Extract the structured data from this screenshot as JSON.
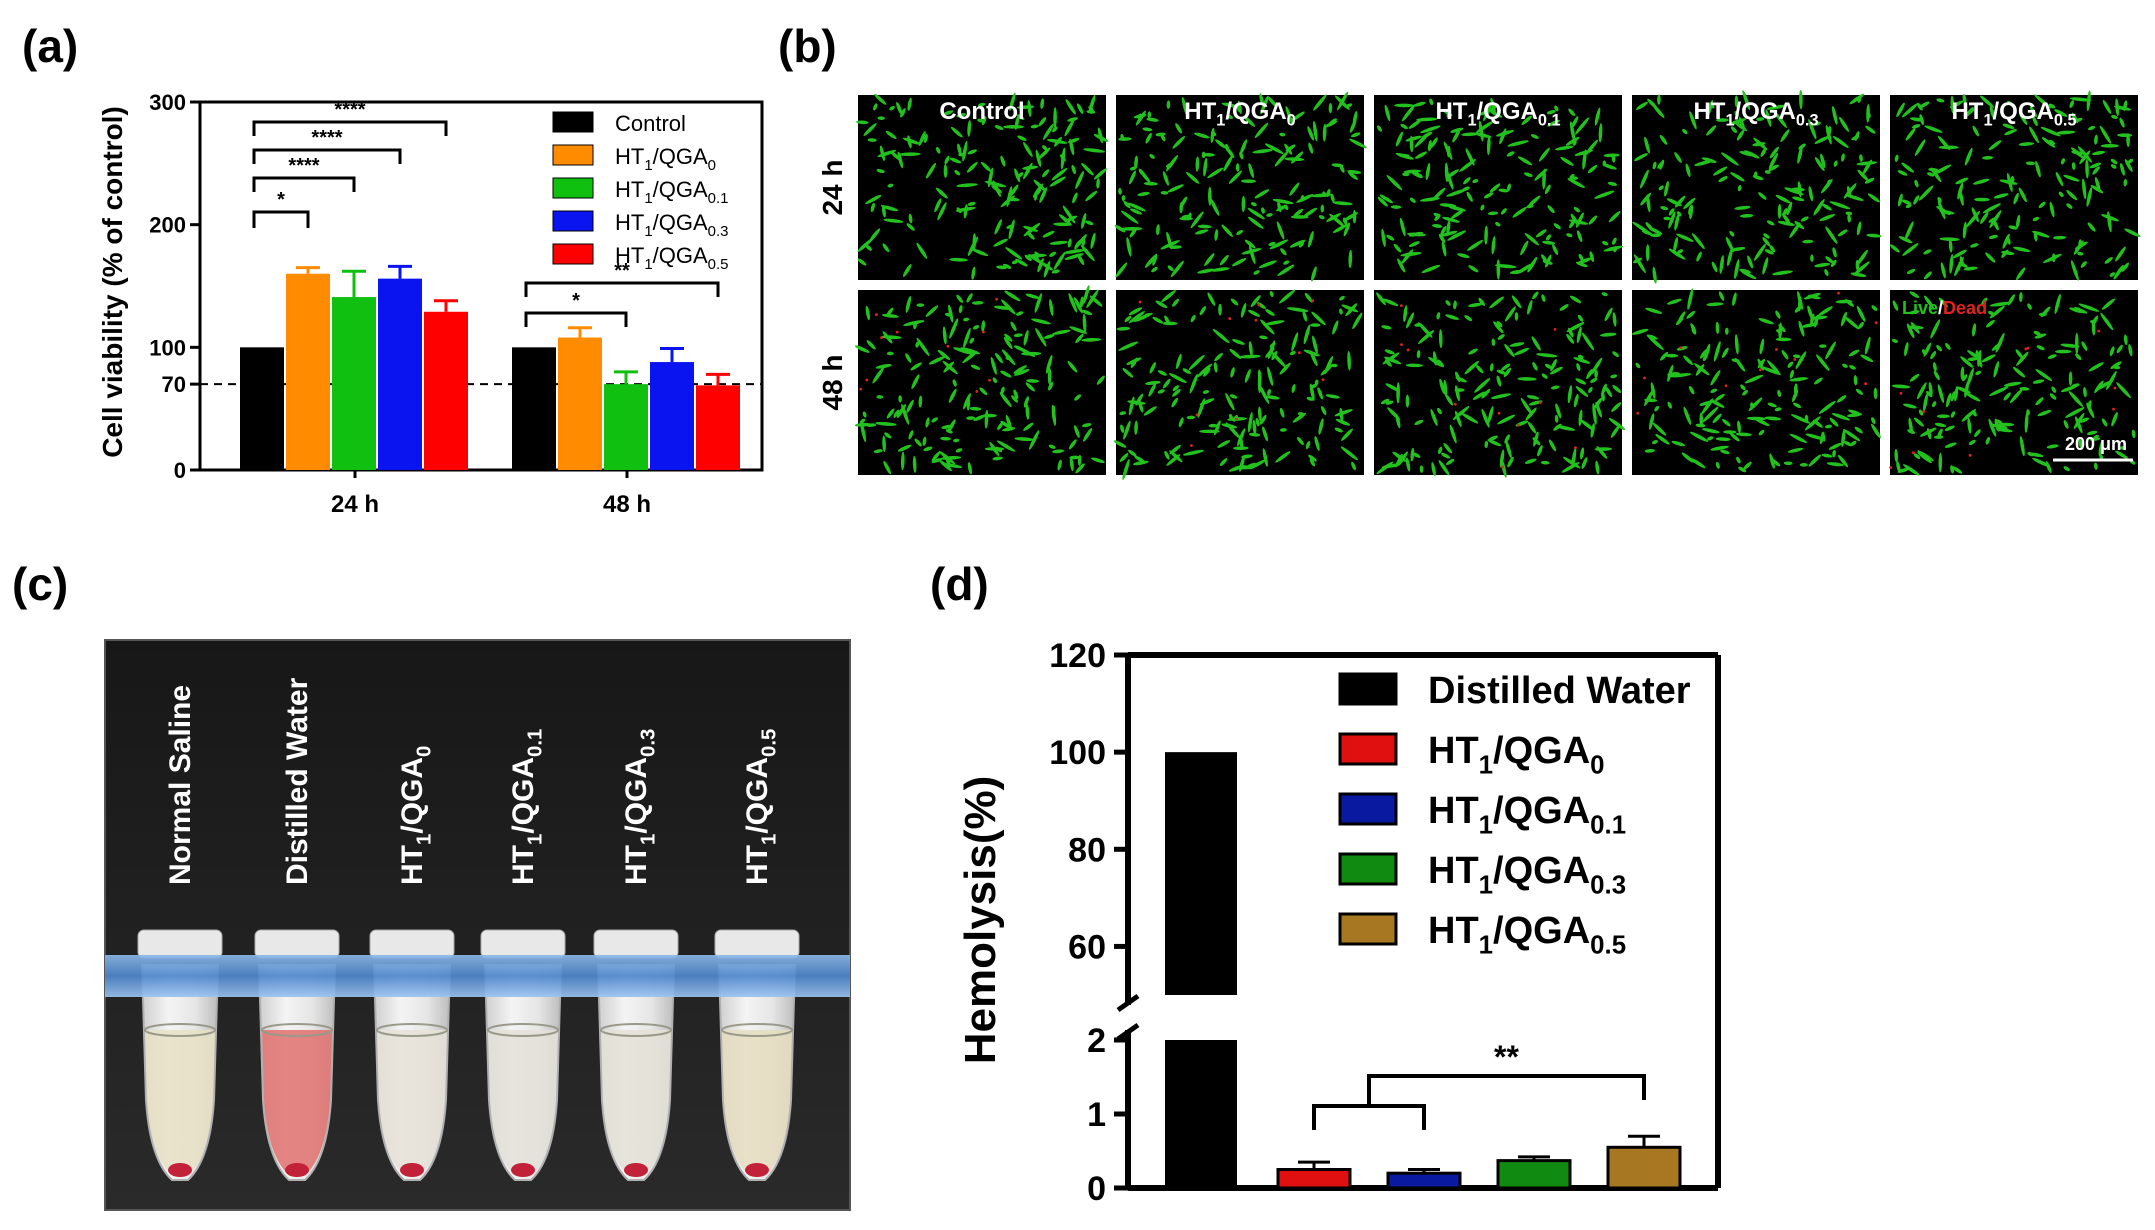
{
  "panels": {
    "a": {
      "label": "(a)"
    },
    "b": {
      "label": "(b)"
    },
    "c": {
      "label": "(c)"
    },
    "d": {
      "label": "(d)"
    }
  },
  "micrographs": {
    "columns": [
      {
        "base": "Control",
        "sub": ""
      },
      {
        "base": "HT",
        "s1": "1",
        "mid": "/QGA",
        "sub": "0"
      },
      {
        "base": "HT",
        "s1": "1",
        "mid": "/QGA",
        "sub": "0.1"
      },
      {
        "base": "HT",
        "s1": "1",
        "mid": "/QGA",
        "sub": "0.3"
      },
      {
        "base": "HT",
        "s1": "1",
        "mid": "/QGA",
        "sub": "0.5"
      }
    ],
    "rows": [
      "24 h",
      "48 h"
    ],
    "live_label": "Live",
    "slash": "/",
    "dead_label": "Dead",
    "scale_bar": "200 μm",
    "colors": {
      "live": "#22c11e",
      "dead": "#e0231e",
      "background": "#000000"
    }
  },
  "tubes": {
    "labels": [
      {
        "base": "Normal Saline"
      },
      {
        "base": "Distilled Water"
      },
      {
        "base": "HT",
        "s1": "1",
        "mid": "/QGA",
        "sub": "0"
      },
      {
        "base": "HT",
        "s1": "1",
        "mid": "/QGA",
        "sub": "0.1"
      },
      {
        "base": "HT",
        "s1": "1",
        "mid": "/QGA",
        "sub": "0.3"
      },
      {
        "base": "HT",
        "s1": "1",
        "mid": "/QGA",
        "sub": "0.5"
      }
    ],
    "liquid_colors": [
      "#e8e0c4",
      "#e0706e",
      "#e6e2d8",
      "#e4e1d8",
      "#e4e1d6",
      "#e6dcc0"
    ]
  },
  "chart_data": [
    {
      "type": "bar",
      "panel": "a",
      "categories": [
        "24 h",
        "48 h"
      ],
      "ylabel": "Cell viability (% of control)",
      "ylim": [
        0,
        300
      ],
      "yticks": [
        0,
        70,
        100,
        200,
        300
      ],
      "reference_line": 70,
      "series": [
        {
          "name": "Control",
          "sub": "",
          "color": "#000000",
          "values": [
            100,
            100
          ],
          "errors": [
            0,
            0
          ]
        },
        {
          "name": "HT1/QGA0",
          "base": "HT",
          "s1": "1",
          "mid": "/QGA",
          "sub": "0",
          "color": "#ff8c00",
          "values": [
            160,
            108
          ],
          "errors": [
            5,
            8
          ]
        },
        {
          "name": "HT1/QGA0.1",
          "base": "HT",
          "s1": "1",
          "mid": "/QGA",
          "sub": "0.1",
          "color": "#10c010",
          "values": [
            141,
            70
          ],
          "errors": [
            21,
            10
          ]
        },
        {
          "name": "HT1/QGA0.3",
          "base": "HT",
          "s1": "1",
          "mid": "/QGA",
          "sub": "0.3",
          "color": "#0a14f0",
          "values": [
            156,
            88
          ],
          "errors": [
            10,
            11
          ]
        },
        {
          "name": "HT1/QGA0.5",
          "base": "HT",
          "s1": "1",
          "mid": "/QGA",
          "sub": "0.5",
          "color": "#ff0000",
          "values": [
            129,
            69
          ],
          "errors": [
            9,
            9
          ]
        }
      ],
      "significance": [
        {
          "group": 0,
          "from": 0,
          "to": 1,
          "label": "*"
        },
        {
          "group": 0,
          "from": 0,
          "to": 2,
          "label": "****"
        },
        {
          "group": 0,
          "from": 0,
          "to": 3,
          "label": "****"
        },
        {
          "group": 0,
          "from": 0,
          "to": 4,
          "label": "****"
        },
        {
          "group": 1,
          "from": 0,
          "to": 2,
          "label": "*"
        },
        {
          "group": 1,
          "from": 0,
          "to": 4,
          "label": "**"
        }
      ],
      "legend_position": "top-right"
    },
    {
      "type": "bar",
      "panel": "d",
      "ylabel": "Hemolysis(%)",
      "broken_axis": true,
      "lower_ylim": [
        0,
        2
      ],
      "lower_yticks": [
        0,
        1,
        2
      ],
      "upper_ylim": [
        50,
        120
      ],
      "upper_yticks": [
        60,
        80,
        100,
        120
      ],
      "series": [
        {
          "name": "Distilled Water",
          "color": "#000000",
          "value": 100,
          "error": 0
        },
        {
          "name": "HT1/QGA0",
          "base": "HT",
          "s1": "1",
          "mid": "/QGA",
          "sub": "0",
          "color": "#e01010",
          "value": 0.25,
          "error": 0.1
        },
        {
          "name": "HT1/QGA0.1",
          "base": "HT",
          "s1": "1",
          "mid": "/QGA",
          "sub": "0.1",
          "color": "#0a1aa0",
          "value": 0.2,
          "error": 0.05
        },
        {
          "name": "HT1/QGA0.3",
          "base": "HT",
          "s1": "1",
          "mid": "/QGA",
          "sub": "0.3",
          "color": "#108a10",
          "value": 0.37,
          "error": 0.05
        },
        {
          "name": "HT1/QGA0.5",
          "base": "HT",
          "s1": "1",
          "mid": "/QGA",
          "sub": "0.5",
          "color": "#a87722",
          "value": 0.55,
          "error": 0.15
        }
      ],
      "significance": [
        {
          "from": 1,
          "to": 2,
          "nested_to": 4,
          "label": "**"
        }
      ],
      "legend_position": "top-right"
    }
  ]
}
